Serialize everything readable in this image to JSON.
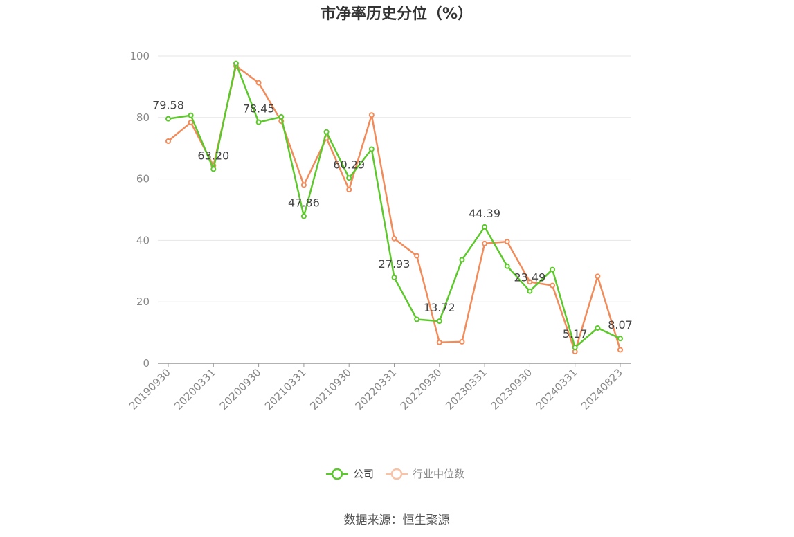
{
  "chart_data": {
    "type": "line",
    "title": "市净率历史分位（%）",
    "xlabel": "",
    "ylabel": "",
    "ylim": [
      0,
      100
    ],
    "yticks": [
      0,
      20,
      40,
      60,
      80,
      100
    ],
    "x": [
      "20190930",
      "20191231",
      "20200331",
      "20200630",
      "20200930",
      "20201231",
      "20210331",
      "20210630",
      "20210930",
      "20211231",
      "20220331",
      "20220630",
      "20220930",
      "20221231",
      "20230331",
      "20230630",
      "20230930",
      "20231231",
      "20240331",
      "20240630",
      "20240823"
    ],
    "xtick_labels": [
      "20190930",
      "20200331",
      "20200930",
      "20210331",
      "20210930",
      "20220331",
      "20220930",
      "20230331",
      "20230930",
      "20240331",
      "20240823"
    ],
    "series": [
      {
        "name": "公司",
        "color": "#5cc82b",
        "values": [
          79.58,
          80.7,
          63.2,
          97.6,
          78.45,
          80.2,
          47.86,
          75.3,
          60.29,
          69.7,
          27.93,
          14.3,
          13.72,
          33.7,
          44.39,
          31.6,
          23.49,
          30.5,
          5.17,
          11.5,
          8.07
        ]
      },
      {
        "name": "行业中位数",
        "color": "#f28b5a",
        "values": [
          72.3,
          78.4,
          64.3,
          96.8,
          91.3,
          78.8,
          58.0,
          73.3,
          56.5,
          80.8,
          40.6,
          35.0,
          6.8,
          7.0,
          39.0,
          39.6,
          26.5,
          25.3,
          3.8,
          28.3,
          4.4
        ]
      }
    ],
    "data_labels": [
      {
        "index": 0,
        "text": "79.58"
      },
      {
        "index": 2,
        "text": "63.20"
      },
      {
        "index": 4,
        "text": "78.45"
      },
      {
        "index": 6,
        "text": "47.86"
      },
      {
        "index": 8,
        "text": "60.29"
      },
      {
        "index": 10,
        "text": "27.93"
      },
      {
        "index": 12,
        "text": "13.72"
      },
      {
        "index": 14,
        "text": "44.39"
      },
      {
        "index": 16,
        "text": "23.49"
      },
      {
        "index": 18,
        "text": "5.17"
      },
      {
        "index": 20,
        "text": "8.07"
      }
    ],
    "grid": true,
    "legend_position": "bottom-center"
  },
  "source_text": "数据来源：恒生聚源"
}
